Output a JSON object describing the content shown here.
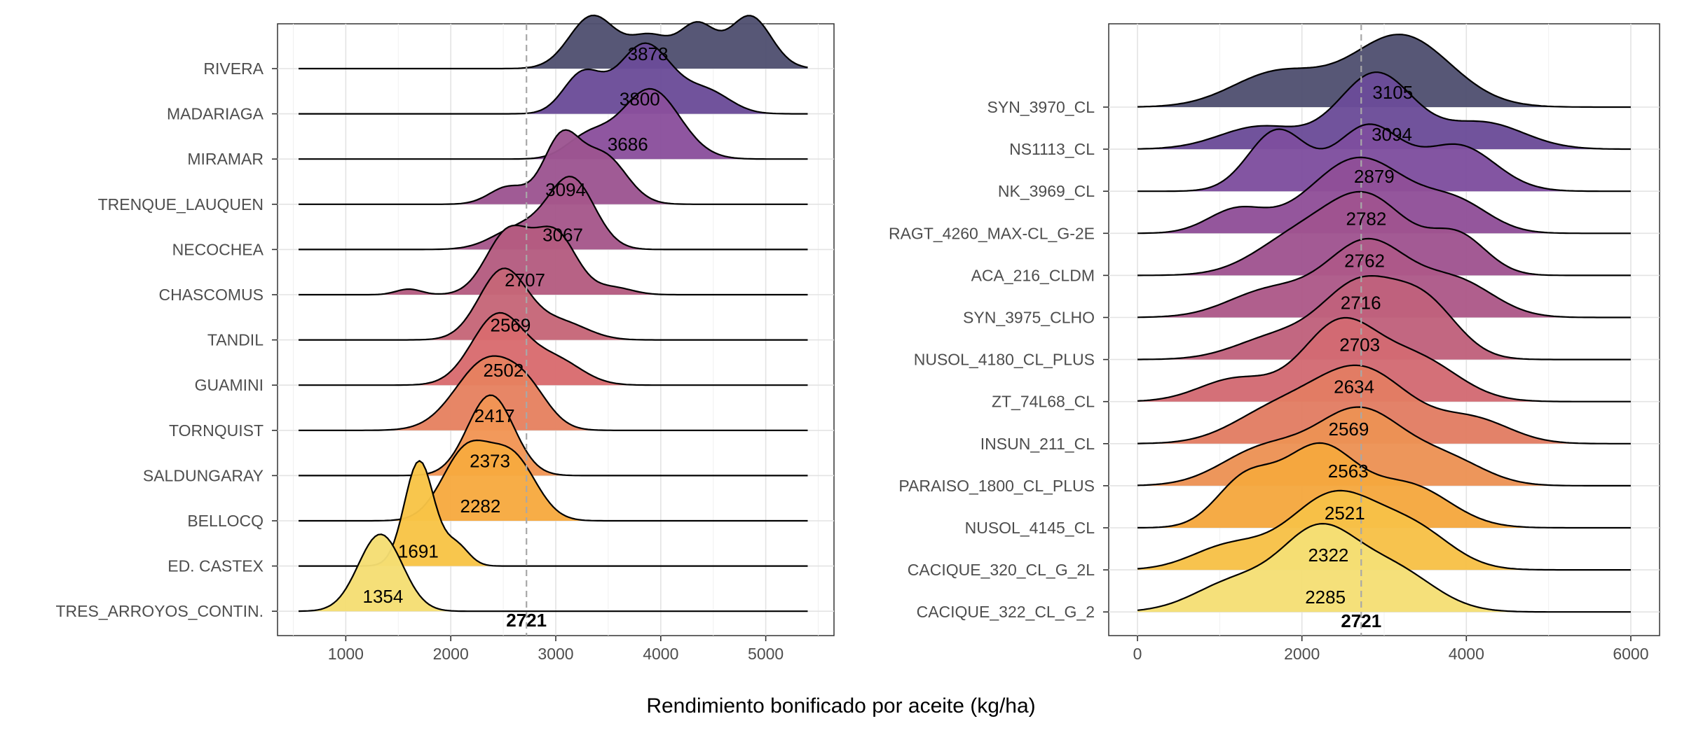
{
  "x_axis_title": "Rendimiento bonificado por aceite (kg/ha)",
  "chart_data": [
    {
      "type": "ridgeline",
      "title": "",
      "xlabel": "Rendimiento bonificado por aceite (kg/ha)",
      "ylabel": "",
      "xlim": [
        350,
        5650
      ],
      "xticks": [
        1000,
        2000,
        3000,
        4000,
        5000
      ],
      "grid": true,
      "legend": "none",
      "reference_line": {
        "value": 2721,
        "label": "2721",
        "style": "dashed",
        "color": "#a8a8a8"
      },
      "categories": [
        "RIVERA",
        "MADARIAGA",
        "MIRAMAR",
        "TRENQUE_LAUQUEN",
        "NECOCHEA",
        "CHASCOMUS",
        "TANDIL",
        "GUAMINI",
        "TORNQUIST",
        "SALDUNGARAY",
        "BELLOCQ",
        "ED. CASTEX",
        "TRES_ARROYOS_CONTIN."
      ],
      "mean_labels": [
        3878,
        3800,
        3686,
        3094,
        3067,
        2707,
        2569,
        2502,
        2417,
        2373,
        2282,
        1691,
        1354
      ],
      "colors": [
        "#505070",
        "#6b4c98",
        "#8a4f9c",
        "#9c5491",
        "#a5568a",
        "#b45c80",
        "#c66678",
        "#d86b6e",
        "#e68160",
        "#f19554",
        "#f7aa3f",
        "#f8c446",
        "#f5de72"
      ],
      "density_range": [
        550,
        5400
      ],
      "series": [
        {
          "name": "RIVERA",
          "peaks": [
            [
              3350,
              220,
              0.75
            ],
            [
              3900,
              200,
              0.45
            ],
            [
              4350,
              170,
              0.6
            ],
            [
              4850,
              200,
              0.75
            ]
          ]
        },
        {
          "name": "MADARIAGA",
          "peaks": [
            [
              3250,
              180,
              0.55
            ],
            [
              3850,
              260,
              1.0
            ],
            [
              4450,
              220,
              0.3
            ]
          ]
        },
        {
          "name": "MIRAMAR",
          "peaks": [
            [
              3300,
              200,
              0.3
            ],
            [
              3900,
              280,
              1.0
            ]
          ]
        },
        {
          "name": "TRENQUE_LAUQUEN",
          "peaks": [
            [
              2550,
              180,
              0.25
            ],
            [
              3050,
              170,
              0.9
            ],
            [
              3450,
              220,
              0.7
            ]
          ]
        },
        {
          "name": "NECOCHEA",
          "peaks": [
            [
              2650,
              250,
              0.3
            ],
            [
              3150,
              220,
              1.0
            ]
          ]
        },
        {
          "name": "CHASCOMUS",
          "peaks": [
            [
              1600,
              120,
              0.08
            ],
            [
              2550,
              210,
              0.9
            ],
            [
              3000,
              200,
              0.85
            ],
            [
              3550,
              180,
              0.1
            ]
          ]
        },
        {
          "name": "TANDIL",
          "peaks": [
            [
              2500,
              230,
              1.0
            ],
            [
              3050,
              250,
              0.25
            ]
          ]
        },
        {
          "name": "GUAMINI",
          "peaks": [
            [
              2450,
              250,
              1.0
            ],
            [
              3000,
              250,
              0.35
            ]
          ]
        },
        {
          "name": "TORNQUIST",
          "peaks": [
            [
              2350,
              300,
              1.0
            ],
            [
              2750,
              200,
              0.35
            ]
          ]
        },
        {
          "name": "SALDUNGARAY",
          "peaks": [
            [
              2380,
              220,
              1.15
            ]
          ]
        },
        {
          "name": "BELLOCQ",
          "peaks": [
            [
              2150,
              230,
              1.0
            ],
            [
              2600,
              220,
              0.85
            ]
          ]
        },
        {
          "name": "ED. CASTEX",
          "peaks": [
            [
              1700,
              140,
              1.5
            ],
            [
              2050,
              120,
              0.3
            ]
          ]
        },
        {
          "name": "TRES_ARROYOS_CONTIN.",
          "peaks": [
            [
              1330,
              210,
              1.1
            ]
          ]
        }
      ]
    },
    {
      "type": "ridgeline",
      "title": "",
      "xlabel": "Rendimiento bonificado por aceite (kg/ha)",
      "ylabel": "",
      "xlim": [
        -350,
        6350
      ],
      "xticks": [
        0,
        2000,
        4000,
        6000
      ],
      "grid": true,
      "legend": "none",
      "reference_line": {
        "value": 2721,
        "label": "2721",
        "style": "dashed",
        "color": "#a8a8a8"
      },
      "categories": [
        "SYN_3970_CL",
        "NS1113_CL",
        "NK_3969_CL",
        "RAGT_4260_MAX-CL_G-2E",
        "ACA_216_CLDM",
        "SYN_3975_CLHO",
        "NUSOL_4180_CL_PLUS",
        "ZT_74L68_CL",
        "INSUN_211_CL",
        "PARAISO_1800_CL_PLUS",
        "NUSOL_4145_CL",
        "CACIQUE_320_CL_G_2L",
        "CACIQUE_322_CL_G_2"
      ],
      "mean_labels": [
        3105,
        3094,
        2879,
        2782,
        2762,
        2716,
        2703,
        2634,
        2569,
        2563,
        2521,
        2322,
        2285
      ],
      "colors": [
        "#505070",
        "#6b4c98",
        "#7e4e9e",
        "#904f98",
        "#9f5390",
        "#ad5888",
        "#c0617c",
        "#d26a73",
        "#e27d63",
        "#ec9254",
        "#f5a83e",
        "#f7c147",
        "#f5df75"
      ],
      "density_range": [
        0,
        6000
      ],
      "series": [
        {
          "name": "SYN_3970_CL",
          "peaks": [
            [
              1700,
              550,
              0.45
            ],
            [
              3200,
              600,
              0.95
            ]
          ]
        },
        {
          "name": "NS1113_CL",
          "peaks": [
            [
              1500,
              500,
              0.3
            ],
            [
              2900,
              450,
              1.0
            ],
            [
              4200,
              500,
              0.35
            ]
          ]
        },
        {
          "name": "NK_3969_CL",
          "peaks": [
            [
              1700,
              350,
              0.8
            ],
            [
              2800,
              400,
              0.85
            ],
            [
              3900,
              450,
              0.6
            ]
          ]
        },
        {
          "name": "RAGT_4260_MAX-CL_G-2E",
          "peaks": [
            [
              1200,
              350,
              0.3
            ],
            [
              2700,
              600,
              1.0
            ],
            [
              3900,
              400,
              0.35
            ]
          ]
        },
        {
          "name": "ACA_216_CLDM",
          "peaks": [
            [
              1900,
              500,
              0.45
            ],
            [
              2800,
              500,
              1.0
            ],
            [
              3900,
              350,
              0.5
            ]
          ]
        },
        {
          "name": "SYN_3975_CLHO",
          "peaks": [
            [
              1600,
              500,
              0.35
            ],
            [
              2800,
              500,
              1.0
            ],
            [
              3900,
              450,
              0.45
            ]
          ]
        },
        {
          "name": "NUSOL_4180_CL_PLUS",
          "peaks": [
            [
              1700,
              500,
              0.3
            ],
            [
              2700,
              450,
              0.95
            ],
            [
              3500,
              400,
              0.7
            ]
          ]
        },
        {
          "name": "ZT_74L68_CL",
          "peaks": [
            [
              1200,
              450,
              0.3
            ],
            [
              2450,
              450,
              1.0
            ],
            [
              3400,
              500,
              0.55
            ]
          ]
        },
        {
          "name": "INSUN_211_CL",
          "peaks": [
            [
              1600,
              500,
              0.35
            ],
            [
              2700,
              600,
              1.0
            ],
            [
              4100,
              450,
              0.3
            ]
          ]
        },
        {
          "name": "PARAISO_1800_CL_PLUS",
          "peaks": [
            [
              1500,
              500,
              0.45
            ],
            [
              2700,
              550,
              1.0
            ],
            [
              3800,
              450,
              0.3
            ]
          ]
        },
        {
          "name": "NUSOL_4145_CL",
          "peaks": [
            [
              1300,
              350,
              0.6
            ],
            [
              2200,
              450,
              1.05
            ],
            [
              3300,
              500,
              0.55
            ]
          ]
        },
        {
          "name": "CACIQUE_320_CL_G_2L",
          "peaks": [
            [
              1100,
              450,
              0.3
            ],
            [
              2400,
              550,
              1.0
            ],
            [
              3400,
              450,
              0.45
            ]
          ]
        },
        {
          "name": "CACIQUE_322_CL_G_2",
          "peaks": [
            [
              1200,
              500,
              0.4
            ],
            [
              2200,
              450,
              1.0
            ],
            [
              3100,
              500,
              0.55
            ]
          ]
        }
      ]
    }
  ]
}
